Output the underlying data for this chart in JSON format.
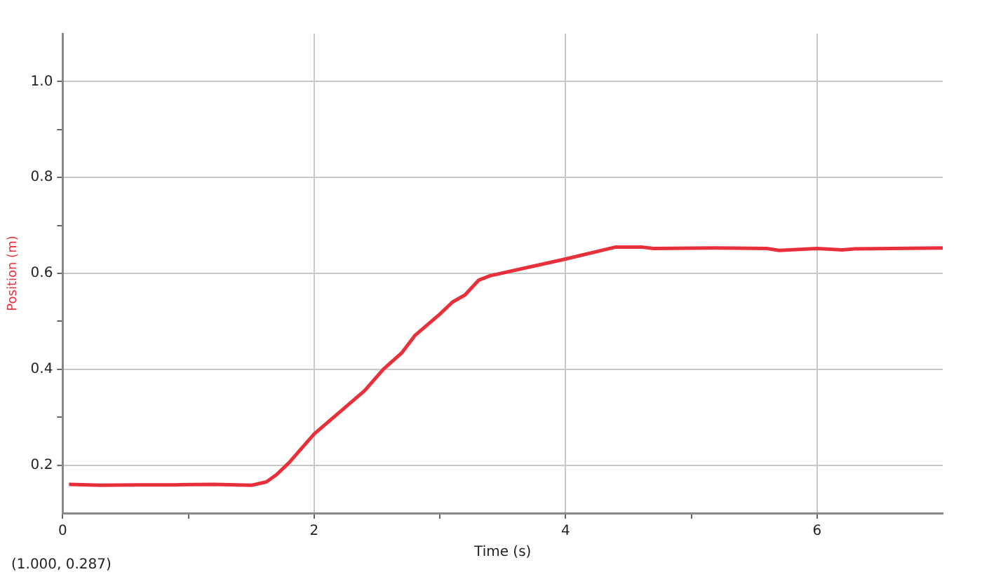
{
  "chart_data": {
    "type": "line",
    "xlabel": "Time (s)",
    "ylabel": "Position (m)",
    "annotations": [
      "(1.000, 0.287)"
    ],
    "xlim": [
      0,
      7
    ],
    "ylim": [
      0.1,
      1.1
    ],
    "xticks": [
      0,
      {
        "value": 1,
        "label": null
      },
      2,
      {
        "value": 3,
        "label": null
      },
      4,
      {
        "value": 5,
        "label": null
      },
      6
    ],
    "yticks": [
      0.2,
      {
        "value": 0.3,
        "label": null
      },
      0.4,
      {
        "value": 0.5,
        "label": null
      },
      0.6,
      {
        "value": 0.7,
        "label": null
      },
      0.8,
      {
        "value": 0.9,
        "label": null
      },
      {
        "value": 1,
        "label": "1.0"
      }
    ],
    "grid": true,
    "legend": false,
    "marker": "none",
    "line_style": "solid",
    "series": [
      {
        "color": "#e8303a",
        "x": [
          0.05,
          0.3,
          0.6,
          0.9,
          1.2,
          1.5,
          1.62,
          1.7,
          1.8,
          2.0,
          2.2,
          2.4,
          2.55,
          2.7,
          2.8,
          3.0,
          3.1,
          3.2,
          3.31,
          3.4,
          4.0,
          4.4,
          4.6,
          4.7,
          5.2,
          5.6,
          5.7,
          6.0,
          6.2,
          6.3,
          7.0
        ],
        "values": [
          0.16,
          0.158,
          0.159,
          0.159,
          0.16,
          0.158,
          0.165,
          0.18,
          0.205,
          0.265,
          0.31,
          0.355,
          0.4,
          0.435,
          0.47,
          0.515,
          0.54,
          0.555,
          0.586,
          0.595,
          0.63,
          0.655,
          0.655,
          0.652,
          0.653,
          0.652,
          0.648,
          0.652,
          0.649,
          0.651,
          0.653
        ]
      }
    ]
  }
}
